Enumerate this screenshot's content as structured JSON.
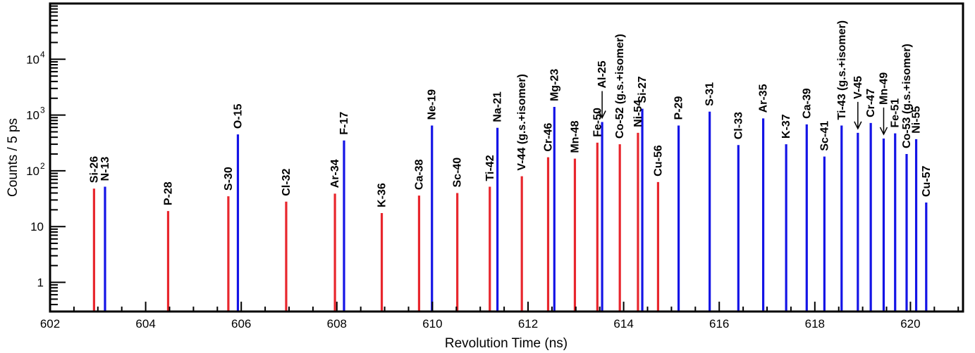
{
  "chart_data": {
    "type": "bar",
    "xlabel": "Revolution Time (ns)",
    "ylabel": "Counts / 5 ps",
    "xlim": [
      602,
      621.1
    ],
    "ylim": [
      0.3,
      100000
    ],
    "y_scale": "log",
    "grid": false,
    "legend": "none",
    "x_ticks": [
      {
        "value": 602,
        "label": "602"
      },
      {
        "value": 604,
        "label": "604"
      },
      {
        "value": 606,
        "label": "606"
      },
      {
        "value": 608,
        "label": "608"
      },
      {
        "value": 610,
        "label": "610"
      },
      {
        "value": 612,
        "label": "612"
      },
      {
        "value": 614,
        "label": "614"
      },
      {
        "value": 616,
        "label": "616"
      },
      {
        "value": 618,
        "label": "618"
      },
      {
        "value": 620,
        "label": "620"
      }
    ],
    "y_ticks": [
      {
        "value": 1,
        "label": "1",
        "sup": ""
      },
      {
        "value": 10,
        "label": "10",
        "sup": ""
      },
      {
        "value": 100,
        "label": "10",
        "sup": "2"
      },
      {
        "value": 1000,
        "label": "10",
        "sup": "3"
      },
      {
        "value": 10000,
        "label": "10",
        "sup": "4"
      }
    ],
    "colors": {
      "red": "#e8262d",
      "blue": "#1414e6"
    },
    "peaks": [
      {
        "label": "Si-26",
        "x": 602.92,
        "y": 48,
        "color": "red"
      },
      {
        "label": "N-13",
        "x": 603.15,
        "y": 52,
        "color": "blue"
      },
      {
        "label": "P-28",
        "x": 604.47,
        "y": 19,
        "color": "red"
      },
      {
        "label": "S-30",
        "x": 605.73,
        "y": 35,
        "color": "red"
      },
      {
        "label": "O-15",
        "x": 605.93,
        "y": 450,
        "color": "blue"
      },
      {
        "label": "Cl-32",
        "x": 606.94,
        "y": 28,
        "color": "red"
      },
      {
        "label": "Ar-34",
        "x": 607.96,
        "y": 39,
        "color": "red"
      },
      {
        "label": "F-17",
        "x": 608.15,
        "y": 350,
        "color": "blue"
      },
      {
        "label": "K-36",
        "x": 608.94,
        "y": 17.5,
        "color": "red"
      },
      {
        "label": "Ca-38",
        "x": 609.72,
        "y": 36,
        "color": "red"
      },
      {
        "label": "Ne-19",
        "x": 609.99,
        "y": 650,
        "color": "blue"
      },
      {
        "label": "Sc-40",
        "x": 610.52,
        "y": 40,
        "color": "red"
      },
      {
        "label": "Ti-42",
        "x": 611.2,
        "y": 52,
        "color": "red"
      },
      {
        "label": "Na-21",
        "x": 611.36,
        "y": 590,
        "color": "blue"
      },
      {
        "label": "V-44 (g.s.+isomer)",
        "x": 611.87,
        "y": 80,
        "color": "red"
      },
      {
        "label": "Cr-46",
        "x": 612.42,
        "y": 175,
        "color": "red"
      },
      {
        "label": "Mg-23",
        "x": 612.55,
        "y": 1400,
        "color": "blue"
      },
      {
        "label": "Mn-48",
        "x": 612.98,
        "y": 165,
        "color": "red"
      },
      {
        "label": "Fe-50",
        "x": 613.45,
        "y": 320,
        "color": "red"
      },
      {
        "label": "Al-25",
        "x": 613.55,
        "y": 750,
        "color": "blue",
        "arrow": true
      },
      {
        "label": "Co-52 (g.s.+isomer)",
        "x": 613.92,
        "y": 300,
        "color": "red"
      },
      {
        "label": "Ni-54",
        "x": 614.3,
        "y": 480,
        "color": "red"
      },
      {
        "label": "Si-27",
        "x": 614.39,
        "y": 1300,
        "color": "blue"
      },
      {
        "label": "Cu-56",
        "x": 614.72,
        "y": 63,
        "color": "red"
      },
      {
        "label": "P-29",
        "x": 615.15,
        "y": 650,
        "color": "blue"
      },
      {
        "label": "S-31",
        "x": 615.8,
        "y": 1150,
        "color": "blue"
      },
      {
        "label": "Cl-33",
        "x": 616.4,
        "y": 290,
        "color": "blue"
      },
      {
        "label": "Ar-35",
        "x": 616.92,
        "y": 870,
        "color": "blue"
      },
      {
        "label": "K-37",
        "x": 617.4,
        "y": 300,
        "color": "blue"
      },
      {
        "label": "Ca-39",
        "x": 617.83,
        "y": 680,
        "color": "blue"
      },
      {
        "label": "Sc-41",
        "x": 618.2,
        "y": 180,
        "color": "blue"
      },
      {
        "label": "Ti-43 (g.s.+isomer)",
        "x": 618.56,
        "y": 650,
        "color": "blue"
      },
      {
        "label": "V-45",
        "x": 618.9,
        "y": 480,
        "color": "blue",
        "arrow": true
      },
      {
        "label": "Cr-47",
        "x": 619.17,
        "y": 720,
        "color": "blue"
      },
      {
        "label": "Mn-49",
        "x": 619.44,
        "y": 380,
        "color": "blue",
        "arrow": true
      },
      {
        "label": "Fe-51",
        "x": 619.68,
        "y": 470,
        "color": "blue"
      },
      {
        "label": "Co-53 (g.s.+isomer)",
        "x": 619.92,
        "y": 200,
        "color": "blue"
      },
      {
        "label": "Ni-55",
        "x": 620.12,
        "y": 370,
        "color": "blue"
      },
      {
        "label": "Cu-57",
        "x": 620.33,
        "y": 27,
        "color": "blue"
      }
    ]
  }
}
